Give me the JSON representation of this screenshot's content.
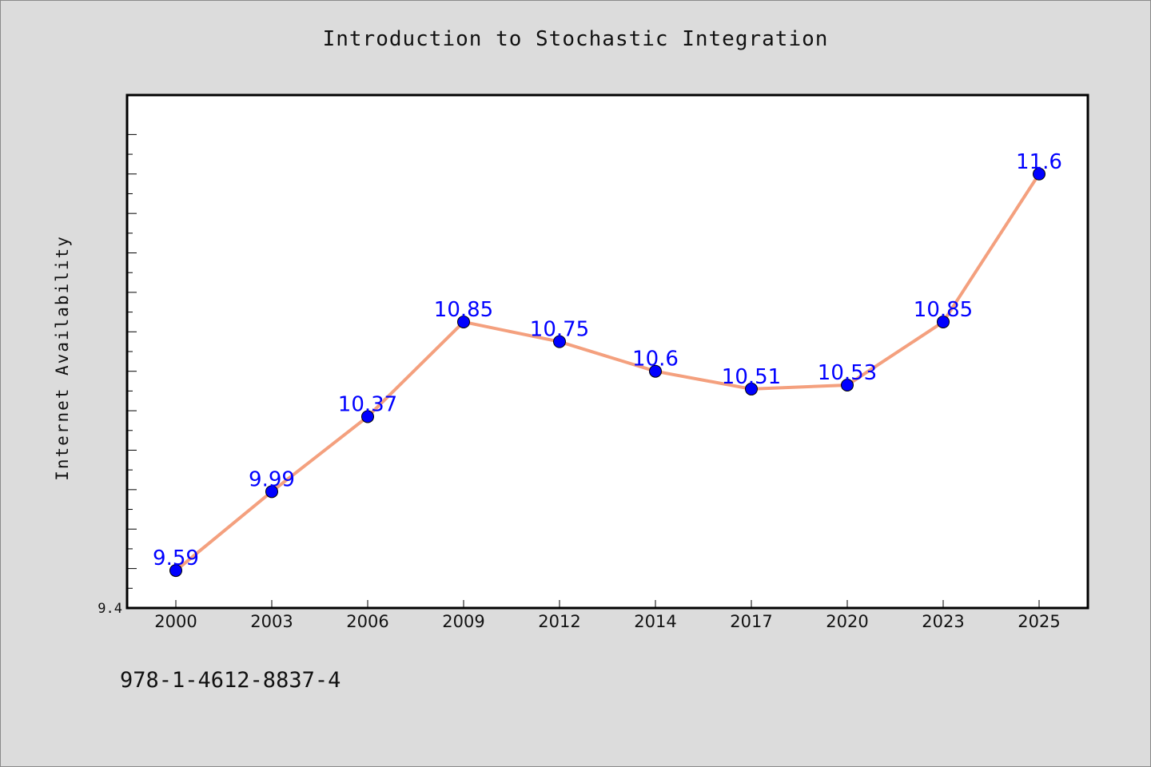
{
  "chart_data": {
    "type": "line",
    "title": "Introduction to Stochastic Integration",
    "xlabel": "",
    "ylabel": "Internet Availability",
    "categories": [
      "2000",
      "2003",
      "2006",
      "2009",
      "2012",
      "2014",
      "2017",
      "2020",
      "2023",
      "2025"
    ],
    "series": [
      {
        "values": [
          9.59,
          9.99,
          10.37,
          10.85,
          10.75,
          10.6,
          10.51,
          10.53,
          10.85,
          11.6
        ],
        "point_labels": [
          "9.59",
          "9.99",
          "10.37",
          "10.85",
          "10.75",
          "10.6",
          "10.51",
          "10.53",
          "10.85",
          "11.6"
        ],
        "line_color": "#f4a07e",
        "marker_color": "#0000ff",
        "label_color": "#0000ff"
      }
    ],
    "ylim": [
      9.4,
      12.0
    ],
    "ytick_label": "9.4",
    "grid": false,
    "legend": "none"
  },
  "footer": {
    "isbn": "978-1-4612-8837-4"
  }
}
